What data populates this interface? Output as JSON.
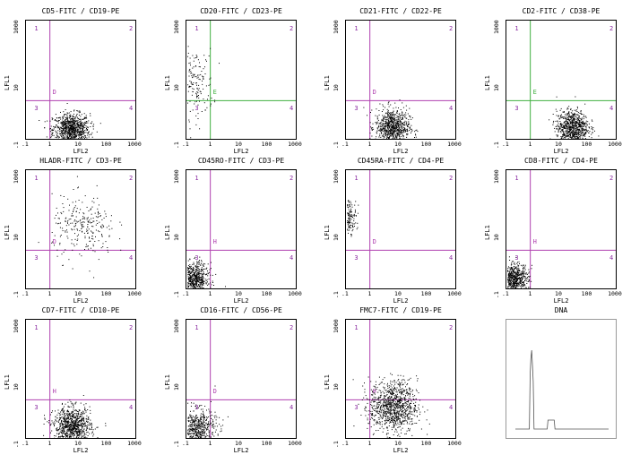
{
  "axis": {
    "xlabel": "LFL2",
    "ylabel": "LFL1",
    "xticks": [
      ".1",
      "1",
      "10",
      "100",
      "1000"
    ],
    "yticks": [
      "1000",
      "10",
      ".1"
    ]
  },
  "colors": {
    "magenta": "#b040b0",
    "green": "#40b040",
    "dots": "#000000",
    "border": "#000000"
  },
  "chart_data": [
    {
      "type": "scatter",
      "title": "CD5-FITC / CD19-PE",
      "gate_color": "magenta",
      "gate_letter": "D",
      "quadrants": [
        "1",
        "2",
        "3",
        "4"
      ],
      "gate_x": 0.8,
      "gate_y": 2.5,
      "clusters": [
        {
          "cx": 5.0,
          "cy": 0.25,
          "spread": [
            0.35,
            0.28
          ],
          "n": 900
        }
      ]
    },
    {
      "type": "scatter",
      "title": "CD20-FITC / CD23-PE",
      "gate_color": "green",
      "gate_letter": "E",
      "quadrants": [
        "1",
        "2",
        "3",
        "4"
      ],
      "gate_x": 0.8,
      "gate_y": 2.5,
      "clusters": [
        {
          "cx": 0.2,
          "cy": 10,
          "spread": [
            0.35,
            0.6
          ],
          "n": 180
        }
      ]
    },
    {
      "type": "scatter",
      "title": "CD21-FITC / CD22-PE",
      "gate_color": "magenta",
      "gate_letter": "D",
      "quadrants": [
        "1",
        "2",
        "3",
        "4"
      ],
      "gate_x": 0.8,
      "gate_y": 2.5,
      "clusters": [
        {
          "cx": 5.5,
          "cy": 0.3,
          "spread": [
            0.32,
            0.33
          ],
          "n": 800
        }
      ]
    },
    {
      "type": "scatter",
      "title": "CD2-FITC / CD38-PE",
      "gate_color": "green",
      "gate_letter": "E",
      "quadrants": [
        "1",
        "2",
        "3",
        "4"
      ],
      "gate_x": 0.8,
      "gate_y": 2.5,
      "clusters": [
        {
          "cx": 30,
          "cy": 0.3,
          "spread": [
            0.3,
            0.3
          ],
          "n": 800
        }
      ]
    },
    {
      "type": "scatter",
      "title": "HLADR-FITC / CD3-PE",
      "gate_color": "magenta",
      "gate_letter": "D",
      "quadrants": [
        "1",
        "2",
        "3",
        "4"
      ],
      "gate_x": 0.8,
      "gate_y": 2.5,
      "clusters": [
        {
          "cx": 15,
          "cy": 15,
          "spread": [
            0.6,
            0.55
          ],
          "n": 260
        }
      ]
    },
    {
      "type": "scatter",
      "title": "CD45RO-FITC / CD3-PE",
      "gate_color": "magenta",
      "gate_letter": "H",
      "quadrants": [
        "1",
        "2",
        "3",
        "4"
      ],
      "gate_x": 0.8,
      "gate_y": 2.5,
      "clusters": [
        {
          "cx": 0.18,
          "cy": 0.25,
          "spread": [
            0.28,
            0.28
          ],
          "n": 700
        }
      ]
    },
    {
      "type": "scatter",
      "title": "CD45RA-FITC / CD4-PE",
      "gate_color": "magenta",
      "gate_letter": "D",
      "quadrants": [
        "1",
        "2",
        "3",
        "4"
      ],
      "gate_x": 0.8,
      "gate_y": 2.5,
      "clusters": [
        {
          "cx": 0.12,
          "cy": 40,
          "spread": [
            0.15,
            0.28
          ],
          "n": 200
        }
      ]
    },
    {
      "type": "scatter",
      "title": "CD8-FITC / CD4-PE",
      "gate_color": "magenta",
      "gate_letter": "H",
      "quadrants": [
        "1",
        "2",
        "3",
        "4"
      ],
      "gate_x": 0.8,
      "gate_y": 2.5,
      "clusters": [
        {
          "cx": 0.18,
          "cy": 0.25,
          "spread": [
            0.28,
            0.28
          ],
          "n": 700
        }
      ]
    },
    {
      "type": "scatter",
      "title": "CD7-FITC / CD10-PE",
      "gate_color": "magenta",
      "gate_letter": "H",
      "quadrants": [
        "1",
        "2",
        "3",
        "4"
      ],
      "gate_x": 0.8,
      "gate_y": 2.5,
      "clusters": [
        {
          "cx": 5.5,
          "cy": 0.3,
          "spread": [
            0.35,
            0.33
          ],
          "n": 900
        }
      ]
    },
    {
      "type": "scatter",
      "title": "CD16-FITC / CD56-PE",
      "gate_color": "magenta",
      "gate_letter": "D",
      "quadrants": [
        "1",
        "2",
        "3",
        "4"
      ],
      "gate_x": 0.8,
      "gate_y": 2.5,
      "clusters": [
        {
          "cx": 0.25,
          "cy": 0.25,
          "spread": [
            0.35,
            0.35
          ],
          "n": 600
        }
      ]
    },
    {
      "type": "scatter",
      "title": "FMC7-FITC / CD19-PE",
      "gate_color": "magenta",
      "gate_letter": "H",
      "quadrants": [
        "1",
        "2",
        "3",
        "4"
      ],
      "gate_x": 0.8,
      "gate_y": 2.5,
      "clusters": [
        {
          "cx": 6.0,
          "cy": 1.5,
          "spread": [
            0.45,
            0.45
          ],
          "n": 1000
        }
      ]
    },
    {
      "type": "line",
      "title": "DNA"
    }
  ]
}
